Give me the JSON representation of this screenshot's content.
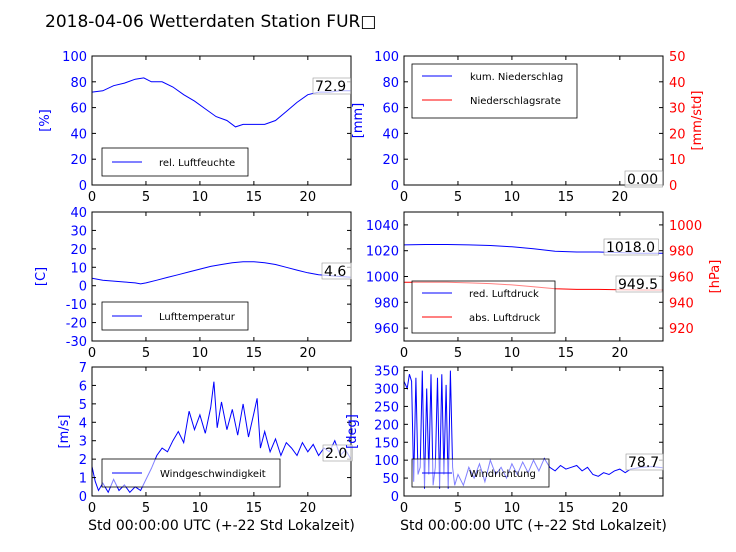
{
  "title": "2018-04-06 Wetterdaten Station FUR□",
  "colors": {
    "blue": "#0000ff",
    "red": "#ff0000",
    "black": "#000000"
  },
  "chart_data": [
    {
      "id": "humidity",
      "type": "line",
      "xlim": [
        0,
        24
      ],
      "ylim": [
        0,
        100
      ],
      "xticks": [
        0,
        5,
        10,
        15,
        20
      ],
      "yticks": [
        0,
        20,
        40,
        60,
        80,
        100
      ],
      "ylabel": "[%]",
      "xlabel": "",
      "end_label": "72.9",
      "legend_placement": "lower-left",
      "series": [
        {
          "name": "rel. Luftfeuchte",
          "color": "#0000ff",
          "x": [
            0,
            1,
            2,
            3,
            4,
            4.8,
            5.5,
            6.5,
            7.5,
            8.5,
            9.5,
            10.5,
            11.5,
            12.5,
            13.3,
            14,
            15,
            16,
            17,
            18,
            19,
            20,
            21,
            22,
            23,
            24
          ],
          "y": [
            72,
            73,
            77,
            79,
            82,
            83,
            80,
            80,
            76,
            70,
            65,
            59,
            53,
            50,
            45,
            47,
            47,
            47,
            50,
            57,
            64,
            70,
            72,
            72,
            73,
            73
          ]
        }
      ]
    },
    {
      "id": "precip",
      "type": "line",
      "xlim": [
        0,
        24
      ],
      "ylim": [
        0,
        100
      ],
      "y2lim": [
        0,
        50
      ],
      "xticks": [
        0,
        5,
        10,
        15,
        20
      ],
      "yticks": [
        0,
        20,
        40,
        60,
        80,
        100
      ],
      "y2ticks": [
        0,
        10,
        20,
        30,
        40,
        50
      ],
      "ylabel": "[mm]",
      "y2label": "[mm/std]",
      "xlabel": "",
      "end_label": "0.00",
      "legend_placement": "top-left",
      "series": [
        {
          "name": "kum. Niederschlag",
          "color": "#0000ff",
          "axis": "left",
          "x": [
            0,
            24
          ],
          "y": [
            0,
            0
          ]
        },
        {
          "name": "Niederschlagsrate",
          "color": "#ff0000",
          "axis": "right",
          "x": [
            0,
            24
          ],
          "y": [
            0,
            0
          ]
        }
      ]
    },
    {
      "id": "temperature",
      "type": "line",
      "xlim": [
        0,
        24
      ],
      "ylim": [
        -30,
        40
      ],
      "xticks": [
        0,
        5,
        10,
        15,
        20
      ],
      "yticks": [
        -30,
        -20,
        -10,
        0,
        10,
        20,
        30,
        40
      ],
      "ylabel": "[C]",
      "xlabel": "",
      "end_label": "4.6",
      "legend_placement": "lower-left",
      "series": [
        {
          "name": "Lufttemperatur",
          "color": "#0000ff",
          "x": [
            0,
            1,
            2,
            3,
            4,
            4.5,
            5,
            6,
            7,
            8,
            9,
            10,
            11,
            12,
            13,
            14,
            15,
            16,
            17,
            18,
            19,
            20,
            21,
            22,
            23,
            24
          ],
          "y": [
            4,
            3,
            2.5,
            2,
            1.5,
            1,
            1.5,
            3,
            4.5,
            6,
            7.5,
            9,
            10.5,
            11.5,
            12.5,
            13,
            13,
            12.5,
            11.5,
            10,
            8.5,
            7,
            6,
            5.5,
            5,
            4.6
          ]
        }
      ]
    },
    {
      "id": "pressure",
      "type": "line",
      "xlim": [
        0,
        24
      ],
      "ylim": [
        950,
        1050
      ],
      "y2lim": [
        910,
        1010
      ],
      "xticks": [
        0,
        5,
        10,
        15,
        20
      ],
      "yticks": [
        960,
        980,
        1000,
        1020,
        1040
      ],
      "y2ticks": [
        920,
        940,
        960,
        980,
        1000
      ],
      "ylabel": "",
      "y2label": "[hPa]",
      "xlabel": "",
      "end_labels": [
        "1018.0",
        "949.5"
      ],
      "legend_placement": "lower-left",
      "series": [
        {
          "name": "red. Luftdruck",
          "color": "#0000ff",
          "axis": "left",
          "x": [
            0,
            2,
            4,
            6,
            8,
            10,
            12,
            14,
            16,
            18,
            20,
            22,
            24
          ],
          "y": [
            1024.5,
            1024.8,
            1024.8,
            1024.5,
            1024,
            1023,
            1021.5,
            1019.5,
            1019,
            1019,
            1018.5,
            1018,
            1018
          ]
        },
        {
          "name": "abs. Luftdruck",
          "color": "#ff0000",
          "axis": "right",
          "x": [
            0,
            2,
            4,
            6,
            8,
            10,
            12,
            14,
            16,
            18,
            20,
            22,
            24
          ],
          "y": [
            955.5,
            955.5,
            955.5,
            955,
            954.5,
            953.5,
            952,
            950.5,
            950,
            950,
            949.8,
            949.5,
            949.5
          ]
        }
      ]
    },
    {
      "id": "windspeed",
      "type": "line",
      "xlim": [
        0,
        24
      ],
      "ylim": [
        0,
        7
      ],
      "xticks": [
        0,
        5,
        10,
        15,
        20
      ],
      "yticks": [
        0,
        1,
        2,
        3,
        4,
        5,
        6,
        7
      ],
      "ylabel": "[m/s]",
      "xlabel": "Std 00:00:00 UTC (+-22 Std Lokalzeit)",
      "end_label": "2.0",
      "legend_placement": "lower-left",
      "series": [
        {
          "name": "Windgeschwindigkeit",
          "color": "#0000ff",
          "x": [
            0,
            0.3,
            0.6,
            1,
            1.5,
            2,
            2.5,
            3,
            3.5,
            4,
            4.5,
            5,
            5.5,
            6,
            6.5,
            7,
            7.5,
            8,
            8.5,
            9,
            9.5,
            10,
            10.5,
            11,
            11.3,
            11.6,
            12,
            12.5,
            13,
            13.5,
            14,
            14.5,
            15,
            15.3,
            15.6,
            16,
            16.5,
            17,
            17.5,
            18,
            18.5,
            19,
            19.5,
            20,
            20.5,
            21,
            21.5,
            22,
            22.5,
            23,
            23.5,
            24
          ],
          "y": [
            1.6,
            0.8,
            0.3,
            0.7,
            0.2,
            0.9,
            0.3,
            0.6,
            0.2,
            0.5,
            0.3,
            0.9,
            1.5,
            2.2,
            2.6,
            2.4,
            3.0,
            3.5,
            2.9,
            4.6,
            3.6,
            4.4,
            3.4,
            4.8,
            6.2,
            3.7,
            5.1,
            3.6,
            4.7,
            3.3,
            5.0,
            3.2,
            4.5,
            5.3,
            2.6,
            3.5,
            2.4,
            3.1,
            2.2,
            2.9,
            2.6,
            2.2,
            2.9,
            2.4,
            2.8,
            2.2,
            2.6,
            2.4,
            3.0,
            2.2,
            2.5,
            2.0
          ]
        }
      ]
    },
    {
      "id": "winddir",
      "type": "line",
      "xlim": [
        0,
        24
      ],
      "ylim": [
        0,
        360
      ],
      "xticks": [
        0,
        5,
        10,
        15,
        20
      ],
      "yticks": [
        0,
        50,
        100,
        150,
        200,
        250,
        300,
        350
      ],
      "ylabel": "[deg]",
      "xlabel": "Std 00:00:00 UTC (+-22 Std Lokalzeit)",
      "end_label": "78.7",
      "legend_placement": "lower-left",
      "series": [
        {
          "name": "Windrichtung",
          "color": "#0000ff",
          "x": [
            0,
            0.3,
            0.5,
            0.7,
            0.9,
            1.1,
            1.3,
            1.5,
            1.7,
            1.9,
            2.1,
            2.3,
            2.5,
            2.7,
            2.9,
            3.1,
            3.3,
            3.5,
            3.7,
            3.9,
            4.1,
            4.3,
            4.5,
            4.7,
            5,
            5.5,
            6,
            6.5,
            7,
            7.5,
            8,
            8.5,
            9,
            9.5,
            10,
            10.5,
            11,
            11.5,
            12,
            12.5,
            13,
            13.5,
            14,
            14.5,
            15,
            15.5,
            16,
            16.5,
            17,
            17.5,
            18,
            18.5,
            19,
            19.5,
            20,
            20.5,
            21,
            22,
            23,
            24
          ],
          "y": [
            320,
            300,
            340,
            320,
            40,
            330,
            60,
            80,
            350,
            20,
            300,
            60,
            340,
            30,
            80,
            330,
            20,
            340,
            60,
            310,
            20,
            350,
            80,
            30,
            60,
            30,
            80,
            50,
            90,
            40,
            100,
            60,
            80,
            50,
            90,
            60,
            95,
            65,
            100,
            70,
            105,
            80,
            70,
            85,
            75,
            80,
            85,
            70,
            80,
            60,
            55,
            65,
            60,
            70,
            75,
            65,
            75,
            80,
            82,
            79
          ]
        }
      ]
    }
  ]
}
